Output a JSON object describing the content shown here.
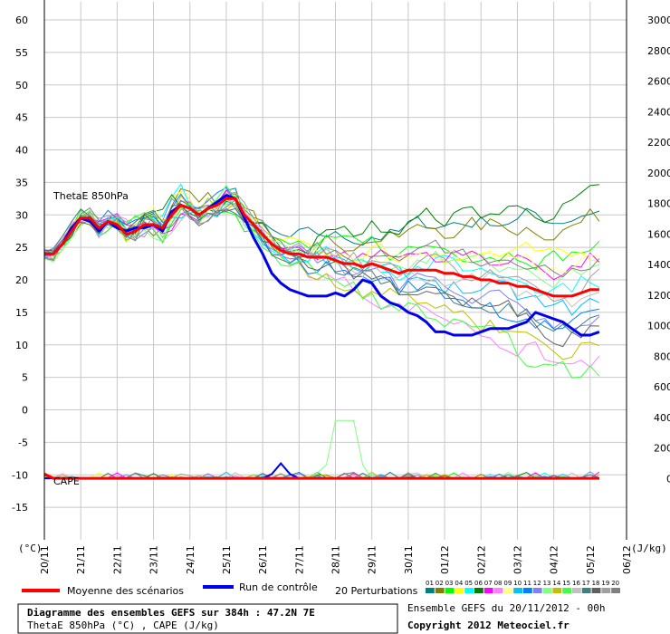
{
  "chart_data": {
    "type": "line",
    "left_axis": {
      "unit": "(°C)",
      "range": [
        -20,
        60
      ],
      "ticks": [
        60,
        55,
        50,
        45,
        40,
        35,
        30,
        25,
        20,
        15,
        10,
        5,
        0,
        -5,
        -10,
        -15
      ]
    },
    "right_axis": {
      "unit": "(J/kg)",
      "range": [
        -400,
        3000
      ],
      "ticks": [
        3000,
        2800,
        2600,
        2400,
        2200,
        2000,
        1800,
        1600,
        1400,
        1200,
        1000,
        800,
        600,
        400,
        200,
        0
      ]
    },
    "x_ticks": [
      "20/11",
      "21/11",
      "22/11",
      "23/11",
      "24/11",
      "25/11",
      "26/11",
      "27/11",
      "28/11",
      "29/11",
      "30/11",
      "01/12",
      "02/12",
      "03/12",
      "04/12",
      "05/12",
      "06/12"
    ],
    "panel_labels": {
      "thetae": "ThetaE 850hPa",
      "cape": "CAPE"
    },
    "x_step_days": 0.25,
    "mean": {
      "name": "Moyenne des scénarios",
      "color": "#ff0000",
      "values": [
        24,
        24,
        25.5,
        27.5,
        29.5,
        29.5,
        28,
        29,
        28.5,
        27,
        27.5,
        28.5,
        28.5,
        28,
        30,
        31.5,
        31,
        30,
        31,
        31.5,
        32.5,
        32.5,
        30,
        28.5,
        27,
        25.5,
        24.5,
        24,
        24,
        23.5,
        23.5,
        23.5,
        23,
        22.5,
        22.5,
        22,
        22.5,
        22,
        21.5,
        21,
        21.5,
        21.5,
        21.5,
        21.5,
        21,
        21,
        20.5,
        20.5,
        20,
        20,
        19.5,
        19.5,
        19,
        19,
        18.5,
        18,
        17.5,
        17.5,
        17.5,
        18,
        18.5,
        18.5
      ]
    },
    "control": {
      "name": "Run de contrôle",
      "color": "#0000ee",
      "values": [
        24,
        24,
        25.5,
        28,
        29.5,
        29,
        27.5,
        29,
        28,
        27.5,
        28,
        28,
        28.5,
        27.5,
        30.5,
        31.5,
        31,
        30,
        31,
        32,
        33,
        32.5,
        29.5,
        26.5,
        24,
        21,
        19.5,
        18.5,
        18,
        17.5,
        17.5,
        17.5,
        18,
        17.5,
        18.5,
        20,
        19.5,
        17.5,
        16.5,
        16,
        15,
        14.5,
        13.5,
        12,
        12,
        11.5,
        11.5,
        11.5,
        12,
        12.5,
        12.5,
        12.5,
        13,
        13.5,
        15,
        14.5,
        14,
        13.5,
        12.5,
        11.5,
        11.5,
        12
      ]
    },
    "perturbations_label": "20 Perturbations",
    "perturbation_ids": [
      "01",
      "02",
      "03",
      "04",
      "05",
      "06",
      "07",
      "08",
      "09",
      "10",
      "11",
      "12",
      "13",
      "14",
      "15",
      "16",
      "17",
      "18",
      "19",
      "20"
    ],
    "perturbation_colors": [
      "#008080",
      "#808000",
      "#00ff00",
      "#ffff00",
      "#00ffff",
      "#008000",
      "#ff00ff",
      "#ff80ff",
      "#ffff80",
      "#00c0ff",
      "#0080ff",
      "#8080ff",
      "#80ff80",
      "#c0c000",
      "#40ff40",
      "#c0c0c0",
      "#408080",
      "#606060",
      "#a0a0a0",
      "#808080"
    ],
    "perturbation_end_values": [
      31,
      29.5,
      25,
      24,
      20.5,
      32.5,
      23,
      7.5,
      22,
      16,
      13.5,
      14.5,
      21.5,
      10,
      6,
      18,
      13,
      13,
      20,
      22.5
    ],
    "perturbation_spike": {
      "series": "13",
      "day": 8.25,
      "cape": 380
    }
  },
  "legend": {
    "mean_label": "Moyenne des scénarios",
    "control_label": "Run de contrôle",
    "perturbations_label": "20 Perturbations"
  },
  "footer": {
    "title": "Diagramme des ensembles GEFS sur 384h : 47.2N 7E",
    "subtitle": "ThetaE 850hPa (°C) , CAPE (J/kg)",
    "run_info": "Ensemble GEFS du 20/11/2012 - 00h",
    "copyright": "Copyright 2012 Meteociel.fr"
  },
  "colors": {
    "background": "#ffffff",
    "grid": "#c8c8c8",
    "axis": "#000000"
  }
}
